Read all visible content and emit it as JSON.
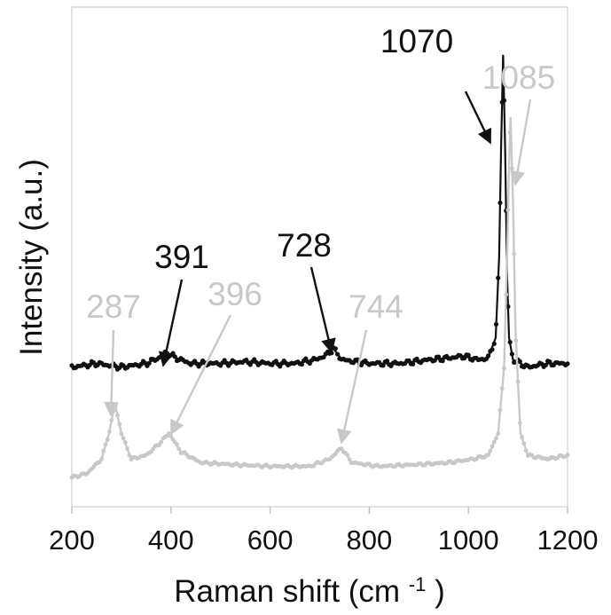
{
  "chart_data": {
    "type": "line",
    "xlabel": "Raman shift (cm",
    "xlabel_superscript": "-1",
    "xlabel_suffix": ")",
    "ylabel": "Intensity (a.u.)",
    "xlim": [
      200,
      1200
    ],
    "x_ticks": [
      "200",
      "400",
      "600",
      "800",
      "1000",
      "1200"
    ],
    "grid": false,
    "legend": "none",
    "colors": {
      "black_series": "#111111",
      "gray_series": "#c8c8c8",
      "frame": "#d9d9d9",
      "axis": "#bfbfbf"
    },
    "series": [
      {
        "color": "#111111",
        "baseline": 0.1,
        "points": [
          [
            200,
            0.1
          ],
          [
            250,
            0.11
          ],
          [
            300,
            0.1
          ],
          [
            350,
            0.11
          ],
          [
            375,
            0.125
          ],
          [
            391,
            0.14
          ],
          [
            410,
            0.125
          ],
          [
            440,
            0.11
          ],
          [
            500,
            0.11
          ],
          [
            550,
            0.115
          ],
          [
            600,
            0.11
          ],
          [
            650,
            0.11
          ],
          [
            690,
            0.12
          ],
          [
            710,
            0.13
          ],
          [
            728,
            0.15
          ],
          [
            745,
            0.12
          ],
          [
            800,
            0.11
          ],
          [
            860,
            0.11
          ],
          [
            920,
            0.12
          ],
          [
            960,
            0.125
          ],
          [
            990,
            0.13
          ],
          [
            1020,
            0.12
          ],
          [
            1040,
            0.125
          ],
          [
            1055,
            0.18
          ],
          [
            1062,
            0.4
          ],
          [
            1066,
            0.7
          ],
          [
            1070,
            0.95
          ],
          [
            1074,
            0.7
          ],
          [
            1078,
            0.35
          ],
          [
            1082,
            0.18
          ],
          [
            1090,
            0.12
          ],
          [
            1120,
            0.1
          ],
          [
            1160,
            0.11
          ],
          [
            1200,
            0.11
          ]
        ]
      },
      {
        "color": "#c8c8c8",
        "baseline": -0.2,
        "points": [
          [
            200,
            -0.2
          ],
          [
            230,
            -0.19
          ],
          [
            260,
            -0.15
          ],
          [
            275,
            -0.08
          ],
          [
            287,
            0.0
          ],
          [
            300,
            -0.08
          ],
          [
            320,
            -0.15
          ],
          [
            350,
            -0.14
          ],
          [
            375,
            -0.11
          ],
          [
            396,
            -0.08
          ],
          [
            420,
            -0.13
          ],
          [
            460,
            -0.16
          ],
          [
            520,
            -0.165
          ],
          [
            600,
            -0.17
          ],
          [
            680,
            -0.17
          ],
          [
            720,
            -0.15
          ],
          [
            744,
            -0.12
          ],
          [
            765,
            -0.16
          ],
          [
            820,
            -0.17
          ],
          [
            900,
            -0.165
          ],
          [
            960,
            -0.16
          ],
          [
            1010,
            -0.15
          ],
          [
            1040,
            -0.14
          ],
          [
            1060,
            -0.08
          ],
          [
            1072,
            0.1
          ],
          [
            1078,
            0.4
          ],
          [
            1082,
            0.65
          ],
          [
            1085,
            0.78
          ],
          [
            1090,
            0.55
          ],
          [
            1095,
            0.2
          ],
          [
            1105,
            -0.08
          ],
          [
            1120,
            -0.14
          ],
          [
            1160,
            -0.15
          ],
          [
            1200,
            -0.14
          ]
        ]
      }
    ],
    "annotations": [
      {
        "label": "1070",
        "x": 1070,
        "color": "#111111"
      },
      {
        "label": "1085",
        "x": 1085,
        "color": "#c8c8c8"
      },
      {
        "label": "391",
        "x": 391,
        "color": "#111111"
      },
      {
        "label": "728",
        "x": 728,
        "color": "#111111"
      },
      {
        "label": "287",
        "x": 287,
        "color": "#c8c8c8"
      },
      {
        "label": "396",
        "x": 396,
        "color": "#c8c8c8"
      },
      {
        "label": "744",
        "x": 744,
        "color": "#c8c8c8"
      }
    ]
  }
}
